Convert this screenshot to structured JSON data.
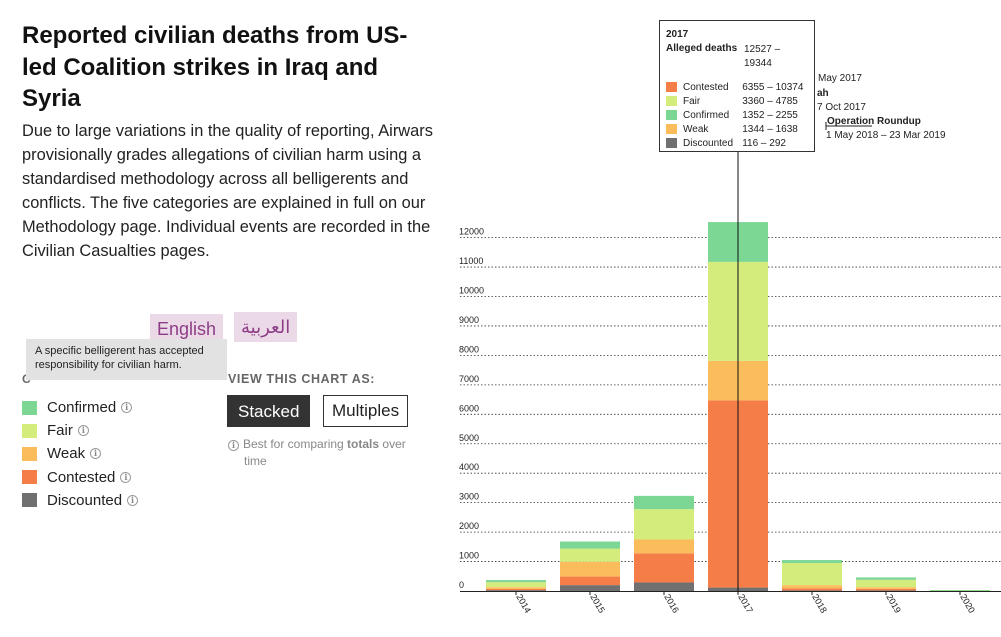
{
  "header": {
    "title": "Reported civilian deaths from US-led Coalition strikes in Iraq and Syria",
    "intro": "Due to large variations in the quality of reporting, Airwars provisionally grades allegations of civilian harm using a standardised methodology across all belligerents and conflicts. The five categories are explained in full on our Methodology page. Individual events are recorded in the Civilian Casualties pages."
  },
  "languages": {
    "english": "English",
    "arabic": "العربية"
  },
  "tooltip_small": "A specific belligerent has accepted responsibility for civilian harm.",
  "legend_heading_visible": "C",
  "legend": [
    {
      "label": "Confirmed",
      "color": "#7cd694",
      "icon": "info-icon"
    },
    {
      "label": "Fair",
      "color": "#d4ec7c",
      "icon": "info-icon"
    },
    {
      "label": "Weak",
      "color": "#fbbd5c",
      "icon": "info-icon"
    },
    {
      "label": "Contested",
      "color": "#f47d48",
      "icon": "info-icon"
    },
    {
      "label": "Discounted",
      "color": "#707070",
      "icon": "info-icon"
    }
  ],
  "view": {
    "label": "VIEW THIS CHART AS:",
    "stacked": "Stacked",
    "multiples": "Multiples",
    "hint_prefix": "Best for comparing ",
    "hint_bold": "totals",
    "hint_suffix": " over",
    "hint_line2": "time"
  },
  "chart_tooltip": {
    "year": "2017",
    "alleged_label": "Alleged deaths",
    "alleged_value": "12527 – 19344",
    "rows": [
      {
        "label": "Contested",
        "value": "6355 – 10374",
        "color": "#f47d48"
      },
      {
        "label": "Fair",
        "value": "3360 – 4785",
        "color": "#d4ec7c"
      },
      {
        "label": "Confirmed",
        "value": "1352 – 2255",
        "color": "#7cd694"
      },
      {
        "label": "Weak",
        "value": "1344 – 1638",
        "color": "#fbbd5c"
      },
      {
        "label": "Discounted",
        "value": "116 – 292",
        "color": "#707070"
      }
    ]
  },
  "annotations": [
    {
      "text": "May 2017",
      "bold": false
    },
    {
      "text": "ah",
      "bold": true
    },
    {
      "text": "7 Oct 2017",
      "bold": false
    },
    {
      "text": "Operation Roundup",
      "bold": true
    },
    {
      "text": "1 May 2018 – 23 Mar 2019",
      "bold": false
    }
  ],
  "chart_data": {
    "type": "bar",
    "stacked": true,
    "categories": [
      "2014",
      "2015",
      "2016",
      "2017",
      "2018",
      "2019",
      "2020"
    ],
    "ylim": [
      0,
      12500
    ],
    "yticks": [
      0,
      1000,
      2000,
      3000,
      4000,
      5000,
      6000,
      7000,
      8000,
      9000,
      10000,
      11000,
      12000
    ],
    "grid": true,
    "series": [
      {
        "name": "Discounted",
        "color": "#707070",
        "values": [
          30,
          200,
          290,
          116,
          20,
          20,
          5
        ]
      },
      {
        "name": "Contested",
        "color": "#f47d48",
        "values": [
          40,
          290,
          990,
          6355,
          70,
          50,
          5
        ]
      },
      {
        "name": "Weak",
        "color": "#fbbd5c",
        "values": [
          60,
          500,
          470,
          1344,
          110,
          60,
          5
        ]
      },
      {
        "name": "Fair",
        "color": "#d4ec7c",
        "values": [
          170,
          450,
          1030,
          3360,
          750,
          250,
          15
        ]
      },
      {
        "name": "Confirmed",
        "color": "#7cd694",
        "values": [
          70,
          240,
          450,
          1352,
          100,
          80,
          5
        ]
      }
    ]
  }
}
